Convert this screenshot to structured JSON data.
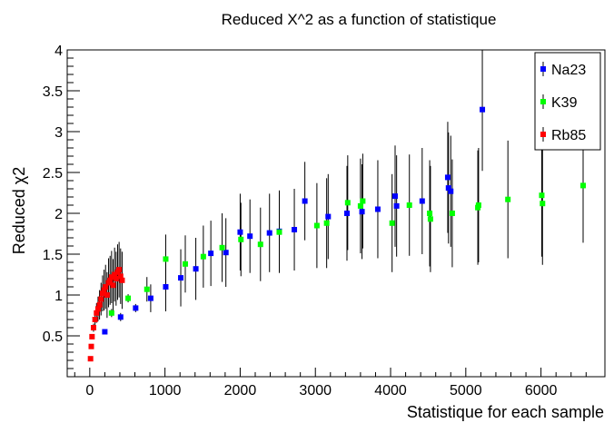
{
  "chart_data": {
    "type": "scatter",
    "title": "Reduced X^2 as a function of statistique",
    "xlabel": "Statistique for each sample",
    "ylabel": "Reduced χ2",
    "xlim": [
      -300,
      6850
    ],
    "ylim": [
      0,
      4
    ],
    "xticks": [
      0,
      1000,
      2000,
      3000,
      4000,
      5000,
      6000
    ],
    "xtick_labels": [
      "0",
      "1000",
      "2000",
      "3000",
      "4000",
      "5000",
      "6000"
    ],
    "yticks": [
      0.5,
      1,
      1.5,
      2,
      2.5,
      3,
      3.5,
      4
    ],
    "ytick_labels": [
      "0.5",
      "1",
      "1.5",
      "2",
      "2.5",
      "3",
      "3.5",
      "4"
    ],
    "grid": false,
    "legend_position": "top-right",
    "series": [
      {
        "name": "Na23",
        "color": "#0000ff",
        "points": [
          {
            "x": 200,
            "y": 0.55,
            "err": 0.02
          },
          {
            "x": 410,
            "y": 0.73,
            "err": 0.05
          },
          {
            "x": 610,
            "y": 0.84,
            "err": 0.05
          },
          {
            "x": 810,
            "y": 0.96,
            "err": 0.17
          },
          {
            "x": 1010,
            "y": 1.1,
            "err": 0.3
          },
          {
            "x": 1210,
            "y": 1.21,
            "err": 0.35
          },
          {
            "x": 1410,
            "y": 1.32,
            "err": 0.38
          },
          {
            "x": 1610,
            "y": 1.51,
            "err": 0.4
          },
          {
            "x": 1810,
            "y": 1.52,
            "err": 0.42
          },
          {
            "x": 2000,
            "y": 1.77,
            "err": 0.47
          },
          {
            "x": 2130,
            "y": 1.72,
            "err": 0.45
          },
          {
            "x": 2390,
            "y": 1.76,
            "err": 0.48
          },
          {
            "x": 2520,
            "y": 1.78,
            "err": 0.5
          },
          {
            "x": 2720,
            "y": 1.8,
            "err": 0.5
          },
          {
            "x": 2860,
            "y": 2.15,
            "err": 0.48
          },
          {
            "x": 3170,
            "y": 1.96,
            "err": 0.52
          },
          {
            "x": 3420,
            "y": 2.0,
            "err": 0.58
          },
          {
            "x": 3620,
            "y": 2.02,
            "err": 0.58
          },
          {
            "x": 3830,
            "y": 2.05,
            "err": 0.6
          },
          {
            "x": 4060,
            "y": 2.21,
            "err": 0.62
          },
          {
            "x": 4080,
            "y": 2.09,
            "err": 0.62
          },
          {
            "x": 4420,
            "y": 2.15,
            "err": 0.65
          },
          {
            "x": 4760,
            "y": 2.44,
            "err": 0.68
          },
          {
            "x": 4770,
            "y": 2.31,
            "err": 0.68
          },
          {
            "x": 4800,
            "y": 2.27,
            "err": 0.68
          },
          {
            "x": 5220,
            "y": 3.27,
            "err": 0.75
          }
        ]
      },
      {
        "name": "K39",
        "color": "#00ff00",
        "points": [
          {
            "x": 290,
            "y": 0.78,
            "err": 0.05
          },
          {
            "x": 510,
            "y": 0.96,
            "err": 0.05
          },
          {
            "x": 760,
            "y": 1.07,
            "err": 0.15
          },
          {
            "x": 1010,
            "y": 1.44,
            "err": 0.3
          },
          {
            "x": 1270,
            "y": 1.38,
            "err": 0.35
          },
          {
            "x": 1510,
            "y": 1.47,
            "err": 0.38
          },
          {
            "x": 1760,
            "y": 1.58,
            "err": 0.42
          },
          {
            "x": 2010,
            "y": 1.68,
            "err": 0.45
          },
          {
            "x": 2270,
            "y": 1.62,
            "err": 0.45
          },
          {
            "x": 2520,
            "y": 1.77,
            "err": 0.5
          },
          {
            "x": 3020,
            "y": 1.85,
            "err": 0.52
          },
          {
            "x": 3150,
            "y": 1.88,
            "err": 0.55
          },
          {
            "x": 3430,
            "y": 2.13,
            "err": 0.58
          },
          {
            "x": 3600,
            "y": 2.09,
            "err": 0.58
          },
          {
            "x": 3630,
            "y": 2.15,
            "err": 0.58
          },
          {
            "x": 4020,
            "y": 1.88,
            "err": 0.6
          },
          {
            "x": 4250,
            "y": 2.1,
            "err": 0.62
          },
          {
            "x": 4520,
            "y": 2.0,
            "err": 0.65
          },
          {
            "x": 4530,
            "y": 1.93,
            "err": 0.65
          },
          {
            "x": 4820,
            "y": 2.0,
            "err": 0.66
          },
          {
            "x": 5160,
            "y": 2.07,
            "err": 0.7
          },
          {
            "x": 5170,
            "y": 2.1,
            "err": 0.7
          },
          {
            "x": 5560,
            "y": 2.17,
            "err": 0.72
          },
          {
            "x": 6010,
            "y": 2.22,
            "err": 0.75
          },
          {
            "x": 6020,
            "y": 2.12,
            "err": 0.75
          },
          {
            "x": 6560,
            "y": 2.34,
            "err": 0.7
          }
        ]
      },
      {
        "name": "Rb85",
        "color": "#ff0000",
        "points": [
          {
            "x": 10,
            "y": 0.22,
            "err": 0.02
          },
          {
            "x": 20,
            "y": 0.37,
            "err": 0.02
          },
          {
            "x": 30,
            "y": 0.49,
            "err": 0.03
          },
          {
            "x": 50,
            "y": 0.6,
            "err": 0.05
          },
          {
            "x": 70,
            "y": 0.7,
            "err": 0.08
          },
          {
            "x": 90,
            "y": 0.78,
            "err": 0.12
          },
          {
            "x": 110,
            "y": 0.83,
            "err": 0.15
          },
          {
            "x": 130,
            "y": 0.88,
            "err": 0.18
          },
          {
            "x": 150,
            "y": 0.95,
            "err": 0.2
          },
          {
            "x": 170,
            "y": 1.02,
            "err": 0.22
          },
          {
            "x": 190,
            "y": 1.06,
            "err": 0.25
          },
          {
            "x": 210,
            "y": 1.1,
            "err": 0.27
          },
          {
            "x": 230,
            "y": 1.0,
            "err": 0.28
          },
          {
            "x": 250,
            "y": 1.15,
            "err": 0.3
          },
          {
            "x": 270,
            "y": 1.18,
            "err": 0.3
          },
          {
            "x": 290,
            "y": 1.22,
            "err": 0.32
          },
          {
            "x": 310,
            "y": 1.12,
            "err": 0.32
          },
          {
            "x": 330,
            "y": 1.25,
            "err": 0.33
          },
          {
            "x": 350,
            "y": 1.2,
            "err": 0.33
          },
          {
            "x": 370,
            "y": 1.28,
            "err": 0.34
          },
          {
            "x": 390,
            "y": 1.31,
            "err": 0.34
          },
          {
            "x": 410,
            "y": 1.23,
            "err": 0.34
          },
          {
            "x": 430,
            "y": 1.18,
            "err": 0.35
          }
        ]
      }
    ]
  }
}
